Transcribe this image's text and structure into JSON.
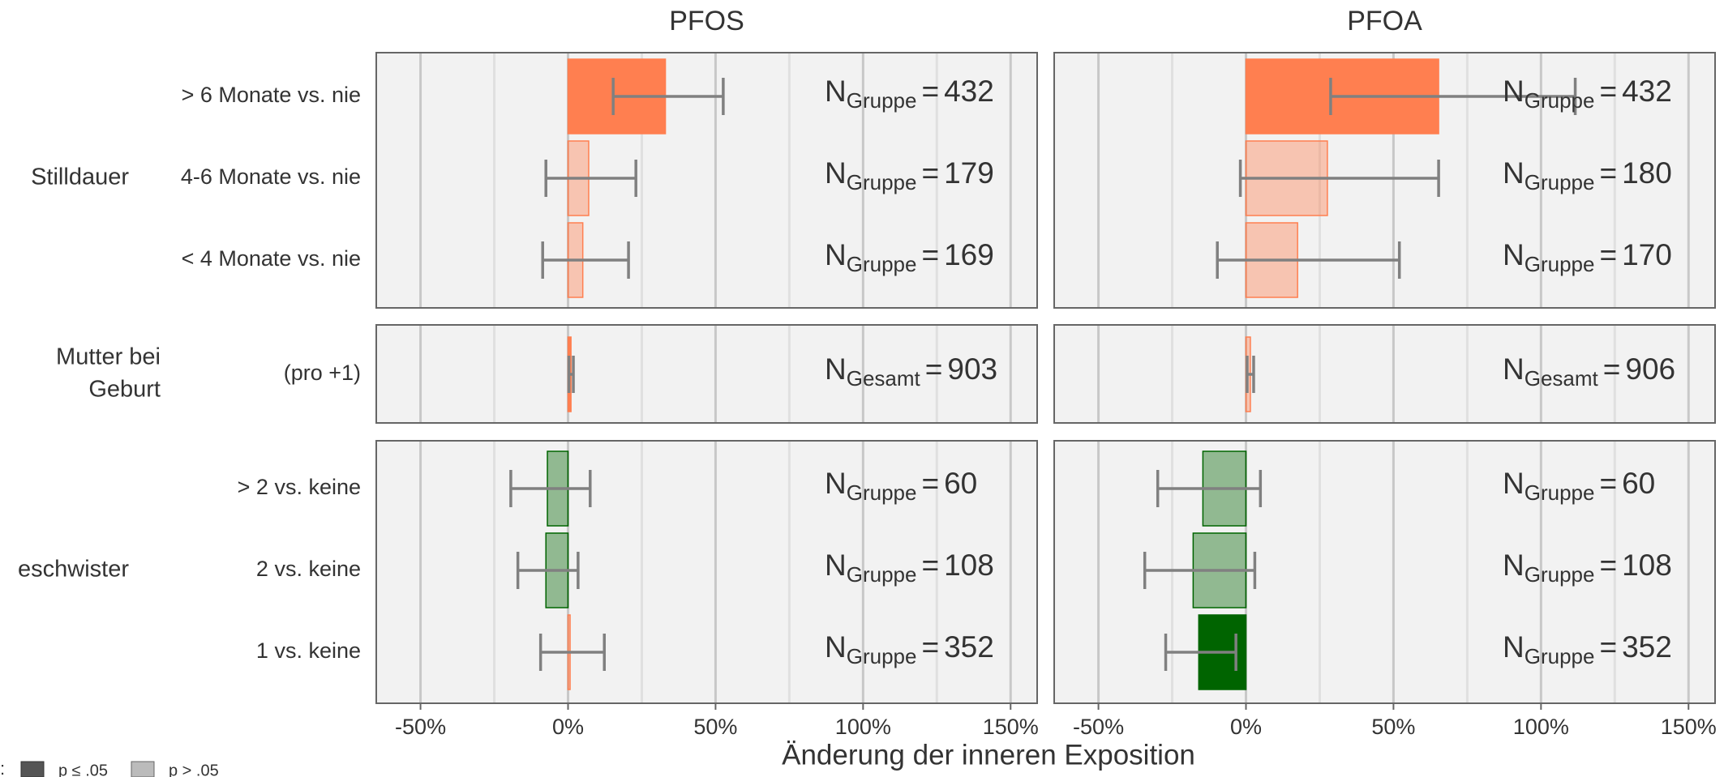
{
  "chart_data": {
    "type": "bar",
    "orientation": "horizontal",
    "x_label": "Änderung der inneren Exposition",
    "xlim": [
      -65,
      159
    ],
    "xticks": [
      {
        "value": -50,
        "label": "-50%"
      },
      {
        "value": 0,
        "label": "0%"
      },
      {
        "value": 50,
        "label": "50%"
      },
      {
        "value": 100,
        "label": "100%"
      },
      {
        "value": 150,
        "label": "150%"
      }
    ],
    "xminorticks": [
      -25,
      25,
      75,
      125
    ],
    "grid": true,
    "colors": {
      "increase": "#ff7f50",
      "decrease": "#006400"
    },
    "row_groups": [
      {
        "label": [
          "Stilldauer"
        ],
        "categories": [
          "> 6 Monate vs. nie",
          "4-6 Monate vs. nie",
          "< 4 Monate vs. nie"
        ]
      },
      {
        "label": [
          "Mutter bei",
          "Geburt"
        ],
        "categories": [
          "(pro +1)"
        ]
      },
      {
        "label": [
          "eschwister"
        ],
        "categories": [
          "> 2 vs. keine",
          "2 vs. keine",
          "1 vs. keine"
        ]
      }
    ],
    "n_symbol": "N",
    "n_equals": "=",
    "panels": [
      {
        "title": "PFOS",
        "values": [
          33,
          7,
          5,
          1,
          -7,
          -7.5,
          0.7
        ],
        "ci_low": [
          15.3,
          -7.5,
          -8.6,
          0.3,
          -19.4,
          -17,
          -9.3
        ],
        "ci_high": [
          52.6,
          23,
          20.5,
          1.8,
          7.5,
          3.4,
          12.3
        ],
        "significant": [
          true,
          false,
          false,
          true,
          false,
          false,
          false
        ],
        "n_sub": [
          "Gruppe",
          "Gruppe",
          "Gruppe",
          "Gesamt",
          "Gruppe",
          "Gruppe",
          "Gruppe"
        ],
        "n": [
          432,
          179,
          169,
          903,
          60,
          108,
          352
        ]
      },
      {
        "title": "PFOA",
        "values": [
          65.3,
          27.6,
          17.5,
          1.5,
          -14.6,
          -17.9,
          -16
        ],
        "ci_low": [
          28.7,
          -1.9,
          -9.7,
          0.4,
          -29.9,
          -34.3,
          -27.2
        ],
        "ci_high": [
          111.6,
          65.3,
          52,
          2.6,
          4.9,
          3,
          -3.4
        ],
        "significant": [
          true,
          false,
          false,
          false,
          false,
          false,
          true
        ],
        "n_sub": [
          "Gruppe",
          "Gruppe",
          "Gruppe",
          "Gesamt",
          "Gruppe",
          "Gruppe",
          "Gruppe"
        ],
        "n": [
          432,
          180,
          170,
          906,
          60,
          108,
          352
        ]
      }
    ],
    "legend": {
      "title": ":",
      "items": [
        "p ≤ .05",
        "p > .05"
      ]
    }
  }
}
